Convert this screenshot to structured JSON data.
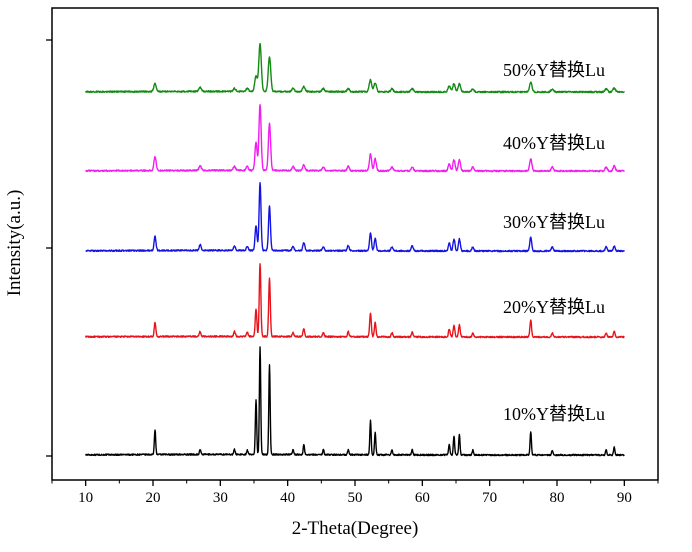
{
  "chart_data": {
    "type": "line",
    "xlabel": "2-Theta(Degree)",
    "ylabel": "Intensity(a.u.)",
    "xlim": [
      5,
      95
    ],
    "xticks": [
      10,
      20,
      30,
      40,
      50,
      60,
      70,
      80,
      90
    ],
    "y_tick_labels": "none",
    "grid": false,
    "legend": "inline text labels at right of each trace",
    "x_range_of_traces": [
      10,
      90
    ],
    "peaks_2theta": [
      20.3,
      27.0,
      32.1,
      34.0,
      35.3,
      35.9,
      37.3,
      40.8,
      42.4,
      45.3,
      49.0,
      52.3,
      53.0,
      55.5,
      58.5,
      64.0,
      64.7,
      65.5,
      67.5,
      76.1,
      79.3,
      87.3,
      88.5
    ],
    "series": [
      {
        "name": "10%Y替换Lu",
        "color": "#000000",
        "offset": 0,
        "peak_heights": [
          25,
          5,
          5,
          4,
          55,
          108,
          90,
          5,
          10,
          5,
          5,
          34,
          22,
          5,
          5,
          11,
          19,
          20,
          5,
          23,
          5,
          5,
          8
        ]
      },
      {
        "name": "20%Y替换Lu",
        "color": "#e8131a",
        "offset": 1,
        "peak_heights": [
          14,
          5,
          5,
          4,
          27,
          73,
          58,
          4,
          8,
          4,
          5,
          24,
          14,
          4,
          5,
          8,
          12,
          12,
          4,
          17,
          4,
          4,
          6
        ]
      },
      {
        "name": "30%Y替换Lu",
        "color": "#1414e0",
        "offset": 2,
        "peak_heights": [
          14,
          6,
          4,
          4,
          25,
          68,
          45,
          4,
          8,
          4,
          5,
          18,
          12,
          4,
          5,
          8,
          12,
          12,
          4,
          14,
          4,
          4,
          5
        ]
      },
      {
        "name": "40%Y替换Lu",
        "color": "#f01ef0",
        "offset": 3,
        "peak_heights": [
          14,
          5,
          4,
          4,
          28,
          66,
          47,
          4,
          6,
          4,
          5,
          17,
          12,
          4,
          4,
          7,
          11,
          11,
          4,
          12,
          4,
          4,
          5
        ]
      },
      {
        "name": "50%Y替换Lu",
        "color": "#138a13",
        "offset": 4,
        "peak_heights": [
          8,
          4,
          3,
          3,
          16,
          48,
          35,
          3,
          5,
          3,
          3,
          12,
          9,
          3,
          3,
          6,
          8,
          8,
          3,
          10,
          3,
          3,
          4
        ]
      }
    ]
  }
}
